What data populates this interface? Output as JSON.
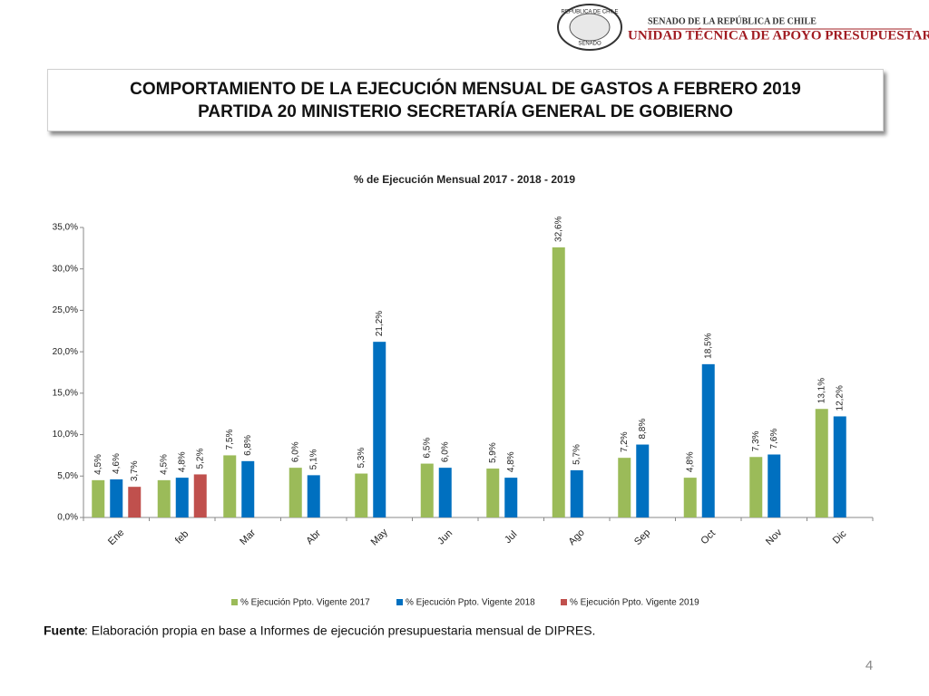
{
  "header": {
    "seal_top": "REPÚBLICA DE CHILE",
    "seal_bottom": "SENADO",
    "org_line1": "SENADO DE LA REPÚBLICA DE CHILE",
    "org_line2": "UNIDAD TÉCNICA DE APOYO PRESUPUESTARIO"
  },
  "slide_title": [
    "COMPORTAMIENTO DE LA EJECUCIÓN MENSUAL DE GASTOS A FEBRERO 2019",
    "PARTIDA 20 MINISTERIO SECRETARÍA GENERAL DE GOBIERNO"
  ],
  "chart_data": {
    "type": "bar",
    "title": "% de Ejecución Mensual 2017 - 2018 - 2019",
    "categories": [
      "Ene",
      "feb",
      "Mar",
      "Abr",
      "May",
      "Jun",
      "Jul",
      "Ago",
      "Sep",
      "Oct",
      "Nov",
      "Dic"
    ],
    "series": [
      {
        "name": "% Ejecución Ppto. Vigente 2017",
        "color": "#9bbb59",
        "values": [
          4.5,
          4.5,
          7.5,
          6.0,
          5.3,
          6.5,
          5.9,
          32.6,
          7.2,
          4.8,
          7.3,
          13.1
        ],
        "value_labels": [
          "4,5%",
          "4,5%",
          "7,5%",
          "6,0%",
          "5,3%",
          "6,5%",
          "5,9%",
          "32,6%",
          "7,2%",
          "4,8%",
          "7,3%",
          "13,1%"
        ]
      },
      {
        "name": "% Ejecución Ppto. Vigente 2018",
        "color": "#0070c0",
        "values": [
          4.6,
          4.8,
          6.8,
          5.1,
          21.2,
          6.0,
          4.8,
          5.7,
          8.8,
          18.5,
          7.6,
          12.2
        ],
        "value_labels": [
          "4,6%",
          "4,8%",
          "6,8%",
          "5,1%",
          "21,2%",
          "6,0%",
          "4,8%",
          "5,7%",
          "8,8%",
          "18,5%",
          "7,6%",
          "12,2%"
        ]
      },
      {
        "name": "% Ejecución Ppto. Vigente 2019",
        "color": "#c0504d",
        "values": [
          3.7,
          5.2,
          null,
          null,
          null,
          null,
          null,
          null,
          null,
          null,
          null,
          null
        ],
        "value_labels": [
          "3,7%",
          "5,2%",
          null,
          null,
          null,
          null,
          null,
          null,
          null,
          null,
          null,
          null
        ]
      }
    ],
    "ylim": [
      0,
      35
    ],
    "yticks": [
      {
        "value": 0,
        "label": "0,0%"
      },
      {
        "value": 5,
        "label": "5,0%"
      },
      {
        "value": 10,
        "label": "10,0%"
      },
      {
        "value": 15,
        "label": "15,0%"
      },
      {
        "value": 20,
        "label": "20,0%"
      },
      {
        "value": 25,
        "label": "25,0%"
      },
      {
        "value": 30,
        "label": "30,0%"
      },
      {
        "value": 35,
        "label": "35,0%"
      }
    ],
    "grid": false,
    "legend": "bottom"
  },
  "source": {
    "label": "Fuente",
    "text": ": Elaboración propia en base  a Informes de ejecución presupuestaria mensual de DIPRES."
  },
  "page_number": "4"
}
